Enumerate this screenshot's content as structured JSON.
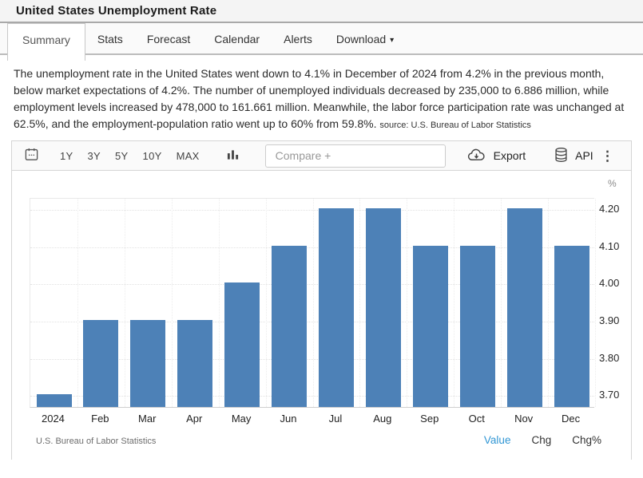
{
  "page": {
    "title": "United States Unemployment Rate"
  },
  "tabs": {
    "items": [
      {
        "label": "Summary",
        "active": true
      },
      {
        "label": "Stats",
        "active": false
      },
      {
        "label": "Forecast",
        "active": false
      },
      {
        "label": "Calendar",
        "active": false
      },
      {
        "label": "Alerts",
        "active": false
      },
      {
        "label": "Download",
        "active": false,
        "caret": "▾"
      }
    ]
  },
  "summary": {
    "text": "The unemployment rate in the United States went down to 4.1% in December of 2024 from 4.2% in the previous month, below market expectations of 4.2%. The number of unemployed individuals decreased by 235,000 to 6.886 million, while employment levels increased by 478,000 to 161.661 million. Meanwhile, the labor force participation rate was unchanged at 62.5%, and the employment-population ratio went up to 60% from 59.8%.",
    "source": "source: U.S. Bureau of Labor Statistics"
  },
  "toolbar": {
    "ranges": [
      "1Y",
      "3Y",
      "5Y",
      "10Y",
      "MAX"
    ],
    "compare_placeholder": "Compare +",
    "export_label": "Export",
    "api_label": "API"
  },
  "icons": {
    "kebab": "⋮"
  },
  "chart_data": {
    "type": "bar",
    "title": "United States Unemployment Rate",
    "categories": [
      "2024",
      "Feb",
      "Mar",
      "Apr",
      "May",
      "Jun",
      "Jul",
      "Aug",
      "Sep",
      "Oct",
      "Nov",
      "Dec"
    ],
    "values": [
      3.7,
      3.9,
      3.9,
      3.9,
      4.0,
      4.1,
      4.2,
      4.2,
      4.1,
      4.1,
      4.2,
      4.1
    ],
    "unit": "%",
    "ylabel": "%",
    "yticks": [
      4.2,
      4.1,
      4.0,
      3.9,
      3.8,
      3.7
    ],
    "ylim": [
      3.666,
      4.23
    ],
    "grid": true,
    "legend": "none",
    "bar_color": "#4d81b7",
    "source": "U.S. Bureau of Labor Statistics"
  },
  "chart_footer": {
    "source": "U.S. Bureau of Labor Statistics",
    "modes": [
      {
        "label": "Value",
        "active": true
      },
      {
        "label": "Chg",
        "active": false
      },
      {
        "label": "Chg%",
        "active": false
      }
    ]
  },
  "colors": {
    "bar": "#4d81b7",
    "accent_blue": "#3096d4",
    "titlebar_bg": "#f4f4f4",
    "toolbar_bg": "#fafafa"
  }
}
